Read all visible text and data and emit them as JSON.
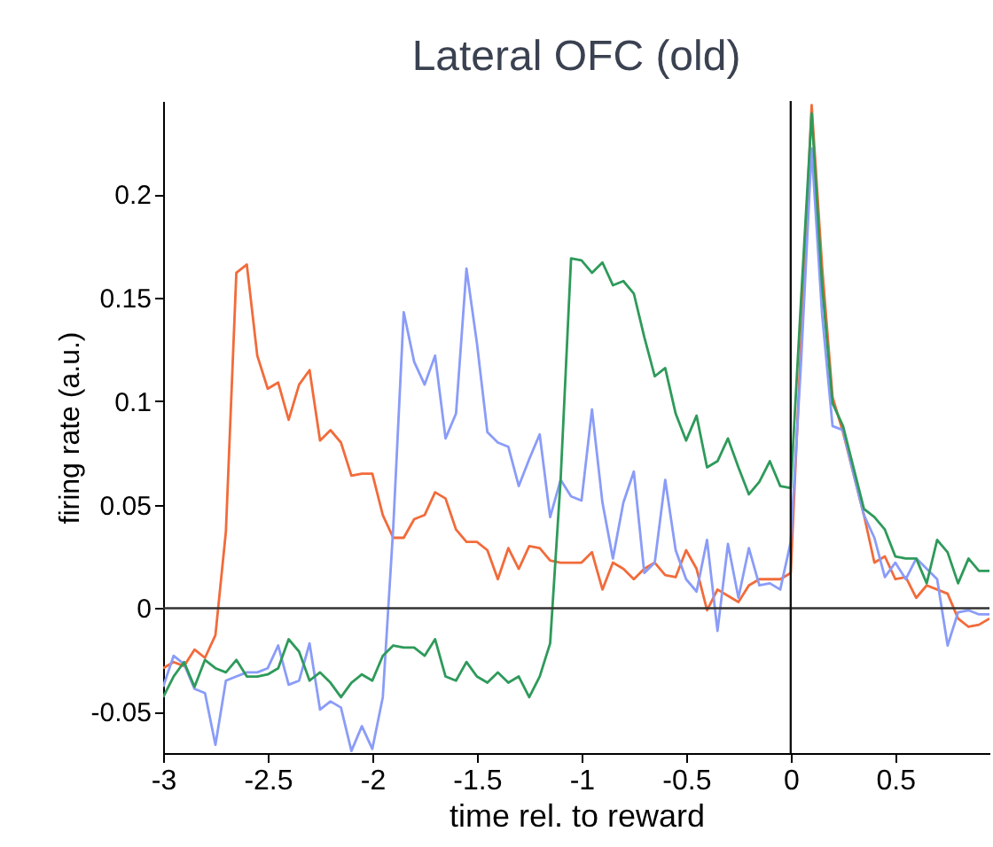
{
  "chart_data": {
    "type": "line",
    "title": "Lateral OFC (old)",
    "xlabel": "time rel. to reward",
    "ylabel": "firing rate (a.u.)",
    "x": [
      -3,
      -2.95,
      -2.9,
      -2.85,
      -2.8,
      -2.75,
      -2.7,
      -2.65,
      -2.6,
      -2.55,
      -2.5,
      -2.45,
      -2.4,
      -2.35,
      -2.3,
      -2.25,
      -2.2,
      -2.15,
      -2.1,
      -2.05,
      -2,
      -1.95,
      -1.9,
      -1.85,
      -1.8,
      -1.75,
      -1.7,
      -1.65,
      -1.6,
      -1.55,
      -1.5,
      -1.45,
      -1.4,
      -1.35,
      -1.3,
      -1.25,
      -1.2,
      -1.15,
      -1.1,
      -1.05,
      -1,
      -0.95,
      -0.9,
      -0.85,
      -0.8,
      -0.75,
      -0.7,
      -0.65,
      -0.6,
      -0.55,
      -0.5,
      -0.45,
      -0.4,
      -0.35,
      -0.3,
      -0.25,
      -0.2,
      -0.15,
      -0.1,
      -0.05,
      0,
      0.05,
      0.1,
      0.15,
      0.2,
      0.25,
      0.3,
      0.35,
      0.4,
      0.45,
      0.5,
      0.55,
      0.6,
      0.65,
      0.7,
      0.75,
      0.8,
      0.85,
      0.9,
      0.95
    ],
    "series": [
      {
        "color": "#f26b3a",
        "values": [
          -0.029,
          -0.026,
          -0.028,
          -0.02,
          -0.024,
          -0.013,
          0.037,
          0.162,
          0.166,
          0.122,
          0.106,
          0.109,
          0.091,
          0.108,
          0.115,
          0.081,
          0.086,
          0.08,
          0.064,
          0.065,
          0.065,
          0.045,
          0.034,
          0.034,
          0.043,
          0.045,
          0.056,
          0.053,
          0.038,
          0.032,
          0.032,
          0.028,
          0.014,
          0.029,
          0.019,
          0.03,
          0.029,
          0.023,
          0.022,
          0.022,
          0.022,
          0.027,
          0.009,
          0.022,
          0.019,
          0.014,
          0.019,
          0.022,
          0.016,
          0.015,
          0.028,
          0.019,
          -0.001,
          0.009,
          0.006,
          0.003,
          0.011,
          0.014,
          0.014,
          0.014,
          0.017,
          0.13,
          0.243,
          0.165,
          0.102,
          0.085,
          0.065,
          0.045,
          0.022,
          0.025,
          0.014,
          0.015,
          0.005,
          0.011,
          0.009,
          0.007,
          -0.005,
          -0.009,
          -0.008,
          -0.005
        ]
      },
      {
        "color": "#8a9cf8",
        "values": [
          -0.038,
          -0.023,
          -0.027,
          -0.039,
          -0.041,
          -0.066,
          -0.035,
          -0.033,
          -0.031,
          -0.031,
          -0.029,
          -0.018,
          -0.037,
          -0.035,
          -0.017,
          -0.049,
          -0.045,
          -0.048,
          -0.069,
          -0.057,
          -0.068,
          -0.043,
          0.039,
          0.143,
          0.119,
          0.108,
          0.122,
          0.082,
          0.094,
          0.164,
          0.128,
          0.085,
          0.08,
          0.078,
          0.059,
          0.072,
          0.084,
          0.044,
          0.062,
          0.054,
          0.052,
          0.096,
          0.051,
          0.024,
          0.051,
          0.066,
          0.017,
          0.022,
          0.062,
          0.028,
          0.014,
          0.008,
          0.033,
          -0.011,
          0.031,
          0.005,
          0.029,
          0.011,
          0.012,
          0.009,
          0.032,
          0.12,
          0.222,
          0.142,
          0.088,
          0.086,
          0.065,
          0.045,
          0.034,
          0.015,
          0.022,
          0.014,
          0.024,
          0.019,
          0.014,
          -0.018,
          -0.002,
          -0.001,
          -0.003,
          -0.003
        ]
      },
      {
        "color": "#2e9a5a",
        "values": [
          -0.043,
          -0.033,
          -0.026,
          -0.038,
          -0.025,
          -0.029,
          -0.031,
          -0.025,
          -0.033,
          -0.033,
          -0.032,
          -0.029,
          -0.015,
          -0.021,
          -0.035,
          -0.031,
          -0.036,
          -0.043,
          -0.036,
          -0.032,
          -0.035,
          -0.023,
          -0.018,
          -0.019,
          -0.019,
          -0.023,
          -0.015,
          -0.033,
          -0.035,
          -0.026,
          -0.033,
          -0.036,
          -0.031,
          -0.036,
          -0.033,
          -0.043,
          -0.033,
          -0.017,
          0.062,
          0.169,
          0.168,
          0.162,
          0.167,
          0.156,
          0.158,
          0.152,
          0.131,
          0.112,
          0.116,
          0.094,
          0.081,
          0.093,
          0.068,
          0.071,
          0.082,
          0.068,
          0.055,
          0.061,
          0.071,
          0.059,
          0.058,
          0.15,
          0.239,
          0.156,
          0.099,
          0.088,
          0.068,
          0.048,
          0.044,
          0.038,
          0.025,
          0.024,
          0.024,
          0.012,
          0.033,
          0.027,
          0.012,
          0.024,
          0.018,
          0.018
        ]
      }
    ],
    "xlim": [
      -3,
      0.95
    ],
    "xticks": [
      -3,
      -2.5,
      -2,
      -1.5,
      -1,
      -0.5,
      0,
      0.5
    ],
    "ylim": [
      -0.07,
      0.245
    ],
    "yticks": [
      -0.05,
      0,
      0.05,
      0.1,
      0.15,
      0.2
    ],
    "ref_lines": [
      {
        "axis": "y",
        "value": 0,
        "color": "#333333"
      },
      {
        "axis": "x",
        "value": 0,
        "color": "#111111"
      }
    ],
    "grid": false,
    "legend": false,
    "line_style": "solid"
  }
}
